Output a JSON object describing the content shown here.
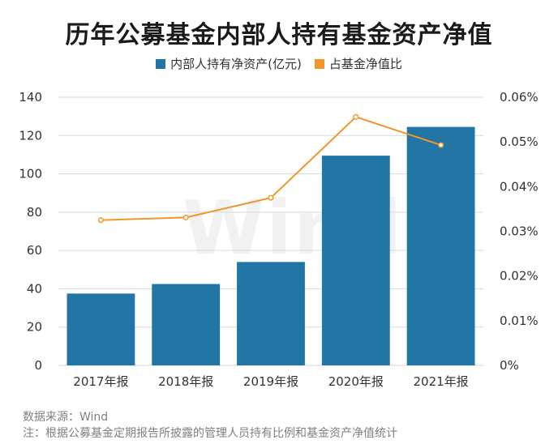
{
  "chart_data": {
    "type": "bar-line",
    "title": "历年公募基金内部人持有基金资产净值",
    "categories": [
      "2017年报",
      "2018年报",
      "2019年报",
      "2020年报",
      "2021年报"
    ],
    "series": [
      {
        "name": "内部人持有净资产(亿元)",
        "type": "bar",
        "axis": "left",
        "color": "#2176a5",
        "values": [
          37.5,
          42.5,
          54,
          109.5,
          124.5
        ]
      },
      {
        "name": "占基金净值比",
        "type": "line",
        "axis": "right",
        "color": "#f0962a",
        "values": [
          0.0325,
          0.0331,
          0.0375,
          0.0556,
          0.0493
        ]
      }
    ],
    "left_axis": {
      "min": 0,
      "max": 140,
      "ticks": [
        0,
        20,
        40,
        60,
        80,
        100,
        120,
        140
      ]
    },
    "right_axis": {
      "min": 0,
      "max": 0.0006,
      "ticks": [
        "0%",
        "0.01%",
        "0.02%",
        "0.03%",
        "0.04%",
        "0.05%",
        "0.06%"
      ]
    },
    "legend_position": "top-center",
    "grid": true
  },
  "watermark": "Wind",
  "footer": {
    "source": "数据来源：Wind",
    "note": "注：根据公募基金定期报告所披露的管理人员持有比例和基金资产净值统计"
  }
}
